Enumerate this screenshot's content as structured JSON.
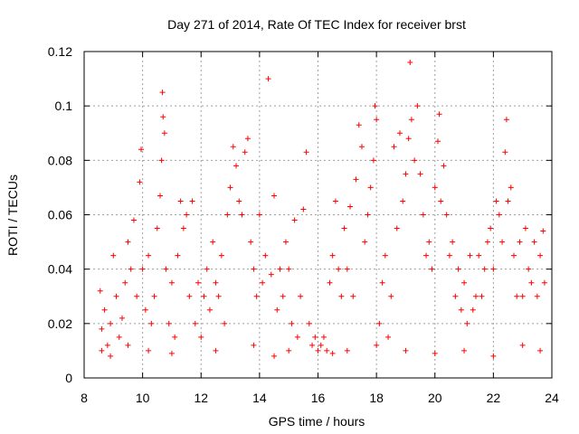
{
  "chart_data": {
    "type": "scatter",
    "title": "Day 271 of 2014, Rate Of TEC Index for receiver brst",
    "xlabel": "GPS time / hours",
    "ylabel": "ROTI / TECUs",
    "xlim": [
      8,
      24
    ],
    "ylim": [
      0,
      0.12
    ],
    "x_ticks": [
      "8",
      "10",
      "12",
      "14",
      "16",
      "18",
      "20",
      "22",
      "24"
    ],
    "y_ticks": [
      "0",
      "0.02",
      "0.04",
      "0.06",
      "0.08",
      "0.1",
      "0.12"
    ],
    "grid": true,
    "marker": "+",
    "color": "#ff0000",
    "series": [
      {
        "points": [
          [
            8.55,
            0.032
          ],
          [
            8.6,
            0.018
          ],
          [
            8.7,
            0.025
          ],
          [
            8.8,
            0.012
          ],
          [
            8.9,
            0.02
          ],
          [
            9.0,
            0.045
          ],
          [
            9.1,
            0.03
          ],
          [
            9.2,
            0.015
          ],
          [
            9.3,
            0.022
          ],
          [
            9.4,
            0.035
          ],
          [
            9.5,
            0.05
          ],
          [
            9.6,
            0.04
          ],
          [
            9.7,
            0.058
          ],
          [
            9.8,
            0.03
          ],
          [
            9.9,
            0.072
          ],
          [
            9.95,
            0.084
          ],
          [
            10.0,
            0.04
          ],
          [
            10.1,
            0.025
          ],
          [
            10.2,
            0.045
          ],
          [
            10.3,
            0.02
          ],
          [
            10.4,
            0.03
          ],
          [
            10.5,
            0.055
          ],
          [
            10.6,
            0.067
          ],
          [
            10.65,
            0.08
          ],
          [
            10.7,
            0.096
          ],
          [
            10.68,
            0.105
          ],
          [
            10.75,
            0.09
          ],
          [
            10.8,
            0.04
          ],
          [
            10.9,
            0.02
          ],
          [
            11.0,
            0.035
          ],
          [
            11.1,
            0.015
          ],
          [
            11.2,
            0.045
          ],
          [
            11.3,
            0.065
          ],
          [
            11.4,
            0.055
          ],
          [
            11.5,
            0.06
          ],
          [
            11.6,
            0.03
          ],
          [
            11.7,
            0.065
          ],
          [
            11.8,
            0.02
          ],
          [
            11.9,
            0.035
          ],
          [
            12.0,
            0.015
          ],
          [
            12.1,
            0.03
          ],
          [
            12.2,
            0.04
          ],
          [
            12.3,
            0.025
          ],
          [
            12.4,
            0.05
          ],
          [
            12.5,
            0.035
          ],
          [
            12.6,
            0.03
          ],
          [
            12.7,
            0.045
          ],
          [
            12.8,
            0.02
          ],
          [
            12.9,
            0.06
          ],
          [
            13.0,
            0.07
          ],
          [
            13.1,
            0.085
          ],
          [
            13.2,
            0.078
          ],
          [
            13.3,
            0.065
          ],
          [
            13.4,
            0.06
          ],
          [
            13.5,
            0.083
          ],
          [
            13.6,
            0.088
          ],
          [
            13.7,
            0.05
          ],
          [
            13.8,
            0.04
          ],
          [
            13.9,
            0.03
          ],
          [
            14.0,
            0.06
          ],
          [
            14.1,
            0.035
          ],
          [
            14.2,
            0.045
          ],
          [
            14.3,
            0.11
          ],
          [
            14.4,
            0.038
          ],
          [
            14.5,
            0.067
          ],
          [
            14.6,
            0.025
          ],
          [
            14.7,
            0.04
          ],
          [
            14.8,
            0.03
          ],
          [
            14.9,
            0.05
          ],
          [
            15.0,
            0.04
          ],
          [
            15.1,
            0.02
          ],
          [
            15.2,
            0.058
          ],
          [
            15.3,
            0.015
          ],
          [
            15.4,
            0.03
          ],
          [
            15.5,
            0.062
          ],
          [
            15.6,
            0.083
          ],
          [
            15.7,
            0.02
          ],
          [
            15.8,
            0.012
          ],
          [
            15.9,
            0.015
          ],
          [
            16.0,
            0.01
          ],
          [
            16.1,
            0.012
          ],
          [
            16.2,
            0.015
          ],
          [
            16.3,
            0.01
          ],
          [
            16.4,
            0.035
          ],
          [
            16.5,
            0.045
          ],
          [
            16.6,
            0.065
          ],
          [
            16.7,
            0.04
          ],
          [
            16.8,
            0.03
          ],
          [
            16.9,
            0.055
          ],
          [
            17.0,
            0.04
          ],
          [
            17.1,
            0.063
          ],
          [
            17.2,
            0.03
          ],
          [
            17.3,
            0.073
          ],
          [
            17.4,
            0.093
          ],
          [
            17.5,
            0.085
          ],
          [
            17.6,
            0.05
          ],
          [
            17.7,
            0.06
          ],
          [
            17.8,
            0.07
          ],
          [
            17.9,
            0.08
          ],
          [
            17.95,
            0.1
          ],
          [
            18.0,
            0.095
          ],
          [
            18.1,
            0.02
          ],
          [
            18.2,
            0.035
          ],
          [
            18.3,
            0.045
          ],
          [
            18.4,
            0.015
          ],
          [
            18.5,
            0.03
          ],
          [
            18.6,
            0.085
          ],
          [
            18.7,
            0.055
          ],
          [
            18.8,
            0.09
          ],
          [
            18.9,
            0.065
          ],
          [
            19.0,
            0.075
          ],
          [
            19.1,
            0.088
          ],
          [
            19.15,
            0.116
          ],
          [
            19.2,
            0.095
          ],
          [
            19.3,
            0.08
          ],
          [
            19.4,
            0.1
          ],
          [
            19.5,
            0.075
          ],
          [
            19.6,
            0.06
          ],
          [
            19.7,
            0.045
          ],
          [
            19.8,
            0.05
          ],
          [
            19.9,
            0.04
          ],
          [
            20.0,
            0.07
          ],
          [
            20.1,
            0.087
          ],
          [
            20.15,
            0.097
          ],
          [
            20.2,
            0.065
          ],
          [
            20.3,
            0.078
          ],
          [
            20.4,
            0.06
          ],
          [
            20.5,
            0.045
          ],
          [
            20.6,
            0.05
          ],
          [
            20.7,
            0.03
          ],
          [
            20.8,
            0.04
          ],
          [
            20.9,
            0.025
          ],
          [
            21.0,
            0.035
          ],
          [
            21.1,
            0.02
          ],
          [
            21.2,
            0.045
          ],
          [
            21.3,
            0.025
          ],
          [
            21.4,
            0.03
          ],
          [
            21.5,
            0.045
          ],
          [
            21.6,
            0.03
          ],
          [
            21.7,
            0.04
          ],
          [
            21.8,
            0.05
          ],
          [
            21.9,
            0.055
          ],
          [
            22.0,
            0.04
          ],
          [
            22.1,
            0.065
          ],
          [
            22.2,
            0.06
          ],
          [
            22.3,
            0.05
          ],
          [
            22.4,
            0.083
          ],
          [
            22.45,
            0.095
          ],
          [
            22.5,
            0.065
          ],
          [
            22.6,
            0.07
          ],
          [
            22.7,
            0.045
          ],
          [
            22.8,
            0.03
          ],
          [
            22.9,
            0.05
          ],
          [
            23.0,
            0.03
          ],
          [
            23.1,
            0.055
          ],
          [
            23.2,
            0.04
          ],
          [
            23.3,
            0.035
          ],
          [
            23.4,
            0.05
          ],
          [
            23.5,
            0.03
          ],
          [
            23.6,
            0.045
          ],
          [
            23.7,
            0.054
          ],
          [
            23.75,
            0.035
          ],
          [
            8.6,
            0.01
          ],
          [
            8.9,
            0.008
          ],
          [
            9.5,
            0.012
          ],
          [
            10.2,
            0.01
          ],
          [
            11.0,
            0.009
          ],
          [
            12.5,
            0.01
          ],
          [
            13.8,
            0.012
          ],
          [
            14.5,
            0.008
          ],
          [
            15.0,
            0.01
          ],
          [
            16.5,
            0.009
          ],
          [
            17.0,
            0.01
          ],
          [
            18.0,
            0.012
          ],
          [
            19.0,
            0.01
          ],
          [
            20.0,
            0.009
          ],
          [
            21.0,
            0.01
          ],
          [
            22.0,
            0.008
          ],
          [
            23.0,
            0.012
          ],
          [
            23.6,
            0.01
          ]
        ]
      }
    ]
  }
}
